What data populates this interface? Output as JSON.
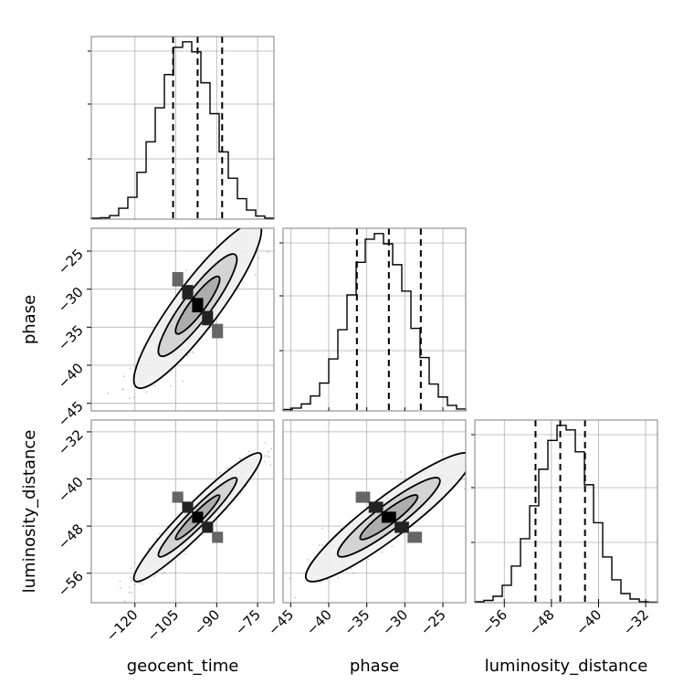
{
  "chart_data": {
    "type": "corner",
    "parameters": [
      "geocent_time",
      "phase",
      "luminosity_distance"
    ],
    "axis_labels": {
      "x": [
        "geocent_time",
        "phase",
        "luminosity_distance"
      ],
      "y": [
        "",
        "phase",
        "luminosity_distance"
      ]
    },
    "ranges": {
      "geocent_time": [
        -136,
        -69
      ],
      "phase": [
        -46,
        -22
      ],
      "luminosity_distance": [
        -61,
        -30
      ]
    },
    "ticks": {
      "geocent_time": [
        -120,
        -105,
        -90,
        -75
      ],
      "phase": [
        -45,
        -40,
        -35,
        -30,
        -25
      ],
      "luminosity_distance": [
        -56,
        -48,
        -40,
        -32
      ]
    },
    "tick_labels": {
      "geocent_time": [
        "−120",
        "−105",
        "−90",
        "−75"
      ],
      "phase": [
        "−45",
        "−40",
        "−35",
        "−30",
        "−25"
      ],
      "luminosity_distance": [
        "−56",
        "−48",
        "−40",
        "−32"
      ]
    },
    "quantiles": {
      "geocent_time": [
        -106,
        -97,
        -88
      ],
      "phase": [
        -36.3,
        -32.1,
        -27.9
      ],
      "luminosity_distance": [
        -50.7,
        -46.5,
        -42.3
      ]
    },
    "histograms": {
      "geocent_time": {
        "edges": [
          -136,
          -132.65,
          -129.3,
          -125.95,
          -122.6,
          -119.25,
          -115.9,
          -112.55,
          -109.2,
          -105.85,
          -102.5,
          -99.15,
          -95.8,
          -92.45,
          -89.1,
          -85.75,
          -82.4,
          -79.05,
          -75.7,
          -72.35,
          -69
        ],
        "counts": [
          2,
          3,
          8,
          24,
          48,
          103,
          170,
          245,
          318,
          378,
          390,
          368,
          300,
          232,
          148,
          90,
          45,
          20,
          7,
          2
        ]
      },
      "phase": {
        "edges": [
          -46,
          -44.8,
          -43.6,
          -42.4,
          -41.2,
          -40,
          -38.8,
          -37.6,
          -36.4,
          -35.2,
          -34,
          -32.8,
          -31.6,
          -30.4,
          -29.2,
          -28,
          -26.8,
          -25.6,
          -24.4,
          -23.2,
          -22
        ],
        "counts": [
          3,
          6,
          15,
          32,
          60,
          112,
          175,
          250,
          320,
          370,
          382,
          360,
          315,
          258,
          178,
          115,
          58,
          30,
          12,
          4
        ]
      },
      "luminosity_distance": {
        "edges": [
          -61,
          -59.45,
          -57.9,
          -56.35,
          -54.8,
          -53.25,
          -51.7,
          -50.15,
          -48.6,
          -47.05,
          -45.5,
          -43.95,
          -42.4,
          -40.85,
          -39.3,
          -37.75,
          -36.2,
          -34.65,
          -33.1,
          -31.55,
          -30
        ],
        "counts": [
          2,
          5,
          14,
          38,
          80,
          140,
          212,
          292,
          355,
          388,
          378,
          330,
          258,
          175,
          100,
          50,
          20,
          8,
          2,
          1
        ]
      }
    },
    "correlations": {
      "phase|geocent_time": 0.9,
      "luminosity_distance|geocent_time": 0.95,
      "luminosity_distance|phase": 0.92
    },
    "grid": true,
    "colors": {
      "line": "#000000",
      "grid": "#b0b0b0",
      "scatter": "#555555",
      "frame": "#7f7f7f"
    }
  }
}
